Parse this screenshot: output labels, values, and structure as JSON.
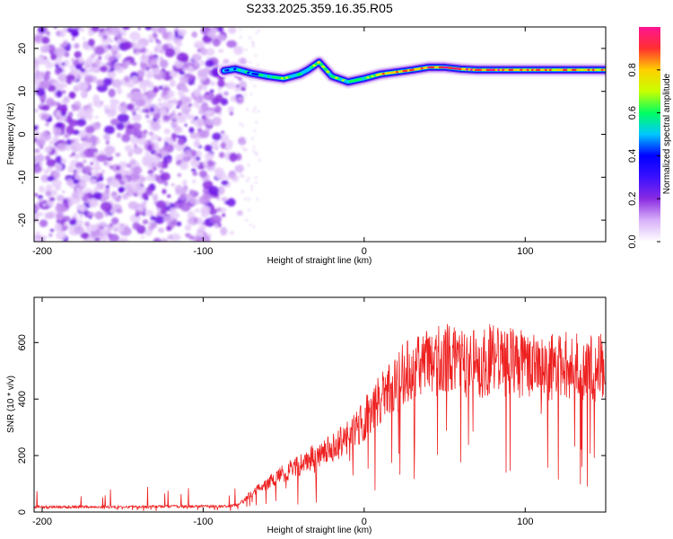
{
  "figure": {
    "title": "S233.2025.359.16.35.R05"
  },
  "chart_data": [
    {
      "type": "heatmap",
      "name": "spectrogram",
      "title": "",
      "xlabel": "Height of straight line (km)",
      "ylabel": "Frequency (Hz)",
      "xlim": [
        -205,
        150
      ],
      "ylim": [
        -25,
        25
      ],
      "xticks": [
        -200,
        -100,
        0,
        100
      ],
      "yticks": [
        -20,
        -10,
        0,
        10,
        20
      ],
      "colorbar": {
        "label": "Normalized spectral amplitude",
        "range": [
          0,
          1
        ],
        "ticks": [
          0.0,
          0.2,
          0.4,
          0.6,
          0.8
        ],
        "tick_labels": [
          "0.0",
          "0.2",
          "0.4",
          "0.6",
          "0.8"
        ],
        "colors": [
          "#ffffff",
          "#d8b0f8",
          "#8a2be2",
          "#3b10ff",
          "#0000ff",
          "#00c8ff",
          "#00ff60",
          "#c8ff00",
          "#ffd000",
          "#ff3030",
          "#ff1493"
        ]
      },
      "ridge": {
        "x": [
          -87,
          -80,
          -70,
          -60,
          -50,
          -40,
          -35,
          -28,
          -20,
          -10,
          0,
          10,
          20,
          30,
          40,
          50,
          60,
          70,
          80,
          100,
          120,
          150
        ],
        "y": [
          14.8,
          15.2,
          14.2,
          13.5,
          13.0,
          14.0,
          15.0,
          16.8,
          13.5,
          12.2,
          13.0,
          14.0,
          14.5,
          15.0,
          15.6,
          15.6,
          15.2,
          15.0,
          15.0,
          15.0,
          15.0,
          15.0
        ],
        "amplitude": [
          0.35,
          0.5,
          0.5,
          0.55,
          0.6,
          0.6,
          0.55,
          0.7,
          0.6,
          0.55,
          0.6,
          0.75,
          0.85,
          0.85,
          0.9,
          0.95,
          0.95,
          0.85,
          0.85,
          0.8,
          0.8,
          0.8
        ]
      },
      "noise_region": {
        "x": [
          -205,
          -75
        ],
        "y": [
          -25,
          25
        ],
        "amplitude_range": [
          0.0,
          0.2
        ]
      }
    },
    {
      "type": "line",
      "name": "snr",
      "title": "",
      "xlabel": "Height of straight line (km)",
      "ylabel": "SNR (10 * v/v)",
      "xlim": [
        -205,
        150
      ],
      "ylim": [
        0,
        760
      ],
      "xticks": [
        -200,
        -100,
        0,
        100
      ],
      "yticks": [
        0,
        200,
        400,
        600
      ],
      "color": "#ee2020",
      "envelope": {
        "x": [
          -205,
          -180,
          -150,
          -120,
          -100,
          -90,
          -80,
          -75,
          -70,
          -60,
          -50,
          -40,
          -30,
          -20,
          -10,
          -5,
          0,
          5,
          10,
          20,
          30,
          40,
          50,
          60,
          70,
          80,
          90,
          100,
          110,
          120,
          130,
          140,
          150
        ],
        "y": [
          20,
          20,
          20,
          22,
          22,
          22,
          25,
          40,
          70,
          110,
          150,
          180,
          220,
          250,
          290,
          320,
          360,
          400,
          430,
          500,
          560,
          580,
          590,
          580,
          570,
          590,
          580,
          570,
          560,
          570,
          560,
          550,
          560
        ]
      },
      "noise_amplitude_fraction": 0.3
    }
  ]
}
